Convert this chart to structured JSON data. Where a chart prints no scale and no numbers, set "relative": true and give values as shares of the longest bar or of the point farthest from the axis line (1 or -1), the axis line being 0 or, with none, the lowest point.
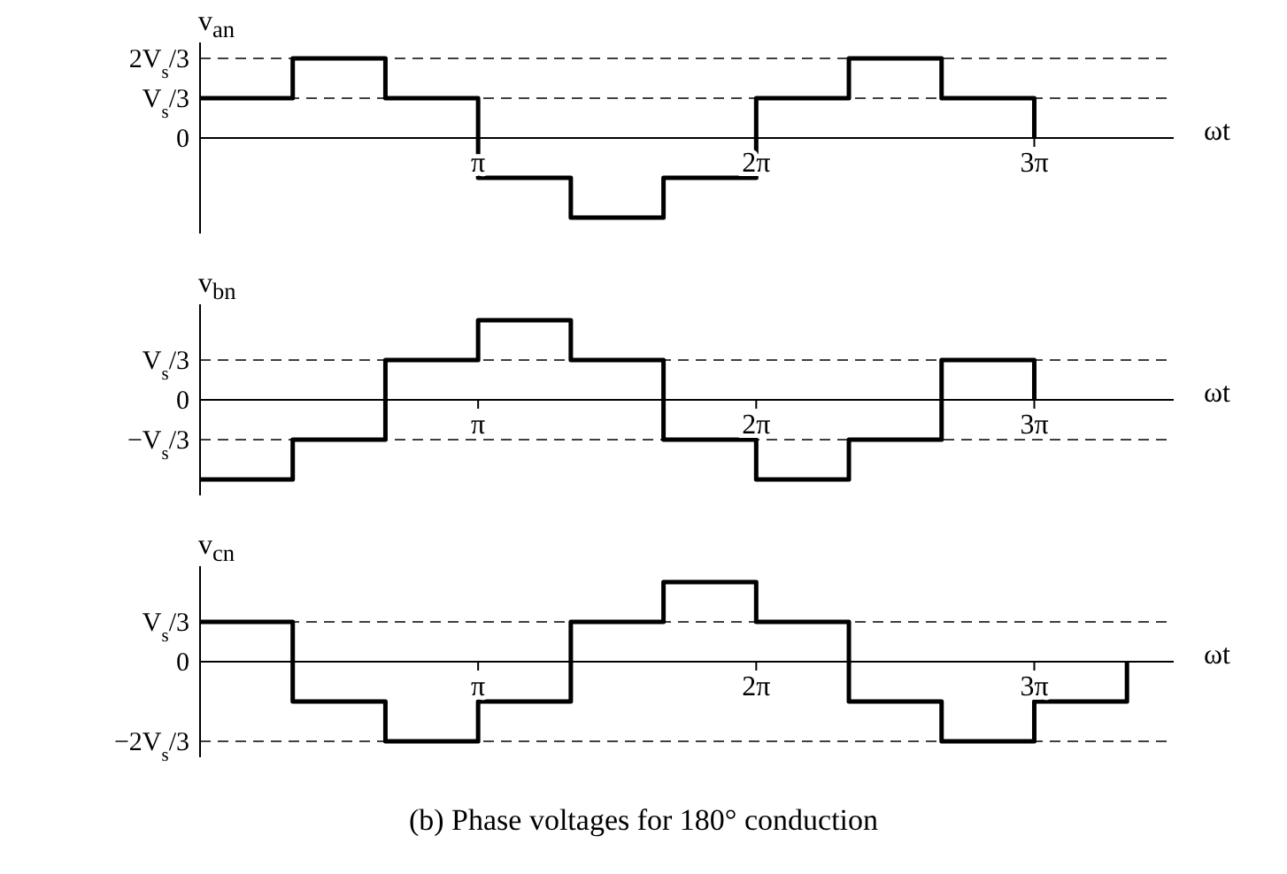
{
  "chart_data": [
    {
      "type": "step",
      "relative": true,
      "ylabel": "v$_{an}$",
      "xlabel": "ωt",
      "xlim": [
        0,
        11
      ],
      "xticks": [
        {
          "value": 3.1416,
          "label": "π"
        },
        {
          "value": 6.2832,
          "label": "2π"
        },
        {
          "value": 9.4248,
          "label": "3π"
        }
      ],
      "grid": false,
      "legend": false,
      "marker": "none",
      "line_style": "solid",
      "ref_lines": [
        {
          "axis": "y",
          "value": 1,
          "label": "2V$_{s}$/3",
          "line_style": "dashed"
        },
        {
          "axis": "y",
          "value": 0.5,
          "label": "V$_{s}$/3",
          "line_style": "dashed"
        }
      ],
      "annotations": [
        "0"
      ],
      "series": [
        {
          "color": "#000000",
          "x": [
            0,
            1.0472,
            2.0944,
            3.1416,
            4.1888,
            5.236,
            6.2832,
            7.3304,
            8.3776,
            9.4248
          ],
          "values": [
            0.5,
            1,
            0.5,
            -0.5,
            -1,
            -0.5,
            0.5,
            1,
            0.5,
            0
          ]
        }
      ]
    },
    {
      "type": "step",
      "relative": true,
      "ylabel": "v$_{bn}$",
      "xlabel": "ωt",
      "xlim": [
        0,
        11
      ],
      "xticks": [
        {
          "value": 3.1416,
          "label": "π"
        },
        {
          "value": 6.2832,
          "label": "2π"
        },
        {
          "value": 9.4248,
          "label": "3π"
        }
      ],
      "grid": false,
      "legend": false,
      "marker": "none",
      "line_style": "solid",
      "ref_lines": [
        {
          "axis": "y",
          "value": 0.5,
          "label": "V$_{s}$/3",
          "line_style": "dashed"
        },
        {
          "axis": "y",
          "value": -0.5,
          "label": "−V$_{s}$/3",
          "line_style": "dashed"
        }
      ],
      "annotations": [
        "0"
      ],
      "series": [
        {
          "color": "#000000",
          "x": [
            0,
            1.0472,
            2.0944,
            3.1416,
            4.1888,
            5.236,
            6.2832,
            7.3304,
            8.3776,
            9.4248
          ],
          "values": [
            -1,
            -0.5,
            0.5,
            1,
            0.5,
            -0.5,
            -1,
            -0.5,
            0.5,
            0
          ]
        }
      ]
    },
    {
      "type": "step",
      "relative": true,
      "ylabel": "v$_{cn}$",
      "xlabel": "ωt",
      "xlim": [
        0,
        11
      ],
      "xticks": [
        {
          "value": 3.1416,
          "label": "π"
        },
        {
          "value": 6.2832,
          "label": "2π"
        },
        {
          "value": 9.4248,
          "label": "3π"
        }
      ],
      "grid": false,
      "legend": false,
      "marker": "none",
      "line_style": "solid",
      "annotations": [
        "0",
        "(b) Phase voltages for 180° conduction"
      ],
      "ref_lines": [
        {
          "axis": "y",
          "value": 0.5,
          "label": "V$_{s}$/3",
          "line_style": "dashed"
        },
        {
          "axis": "y",
          "value": -1,
          "label": "−2V$_{s}$/3",
          "line_style": "dashed"
        }
      ],
      "series": [
        {
          "color": "#000000",
          "x": [
            0,
            1.0472,
            2.0944,
            3.1416,
            4.1888,
            5.236,
            6.2832,
            7.3304,
            8.3776,
            9.4248,
            10.472
          ],
          "values": [
            0.5,
            -0.5,
            -1,
            -0.5,
            0.5,
            1,
            0.5,
            -0.5,
            -1,
            -0.5,
            0
          ]
        }
      ]
    }
  ]
}
